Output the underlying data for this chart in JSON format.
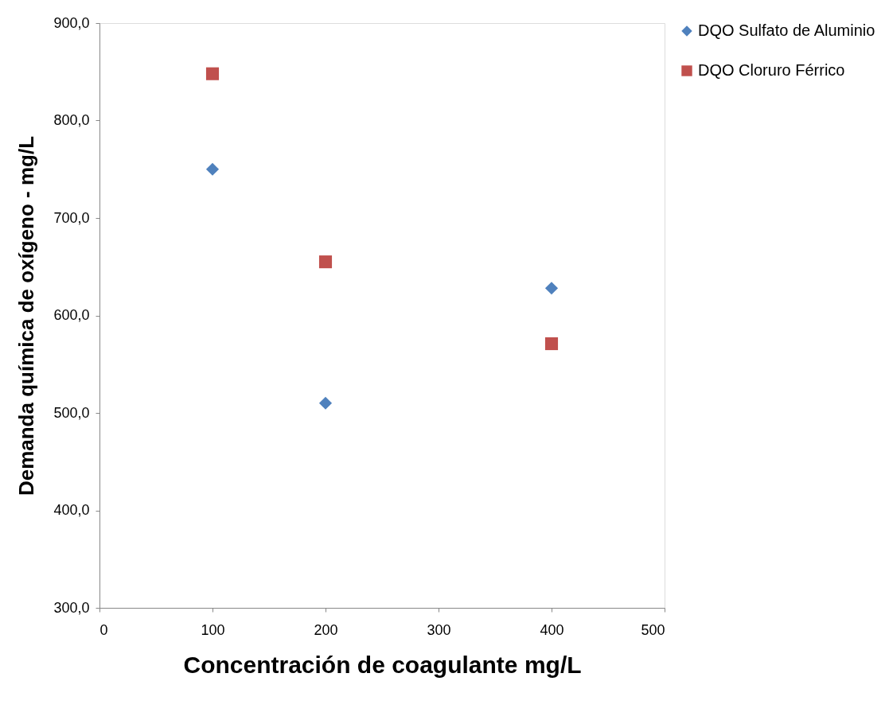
{
  "chart_data": {
    "type": "scatter",
    "xlabel": "Concentración de coagulante mg/L",
    "ylabel": "Demanda química de oxígeno - mg/L",
    "xlim": [
      0,
      500
    ],
    "xticks": [
      0,
      100,
      200,
      300,
      400,
      500
    ],
    "ylim": [
      300,
      900
    ],
    "yticks": [
      {
        "value": 300,
        "label": "300,0"
      },
      {
        "value": 400,
        "label": "400,0"
      },
      {
        "value": 500,
        "label": "500,0"
      },
      {
        "value": 600,
        "label": "600,0"
      },
      {
        "value": 700,
        "label": "700,0"
      },
      {
        "value": 800,
        "label": "800,0"
      },
      {
        "value": 900,
        "label": "900,0"
      }
    ],
    "grid": false,
    "legend": "right",
    "series": [
      {
        "name": "DQO Sulfato de Aluminio",
        "color": "#4f81bd",
        "marker": "diamond",
        "x": [
          100,
          200,
          400
        ],
        "values": [
          750,
          510,
          628
        ]
      },
      {
        "name": "DQO Cloruro Férrico",
        "color": "#c0504d",
        "marker": "square",
        "x": [
          100,
          200,
          400
        ],
        "values": [
          848,
          655,
          571
        ]
      }
    ]
  }
}
